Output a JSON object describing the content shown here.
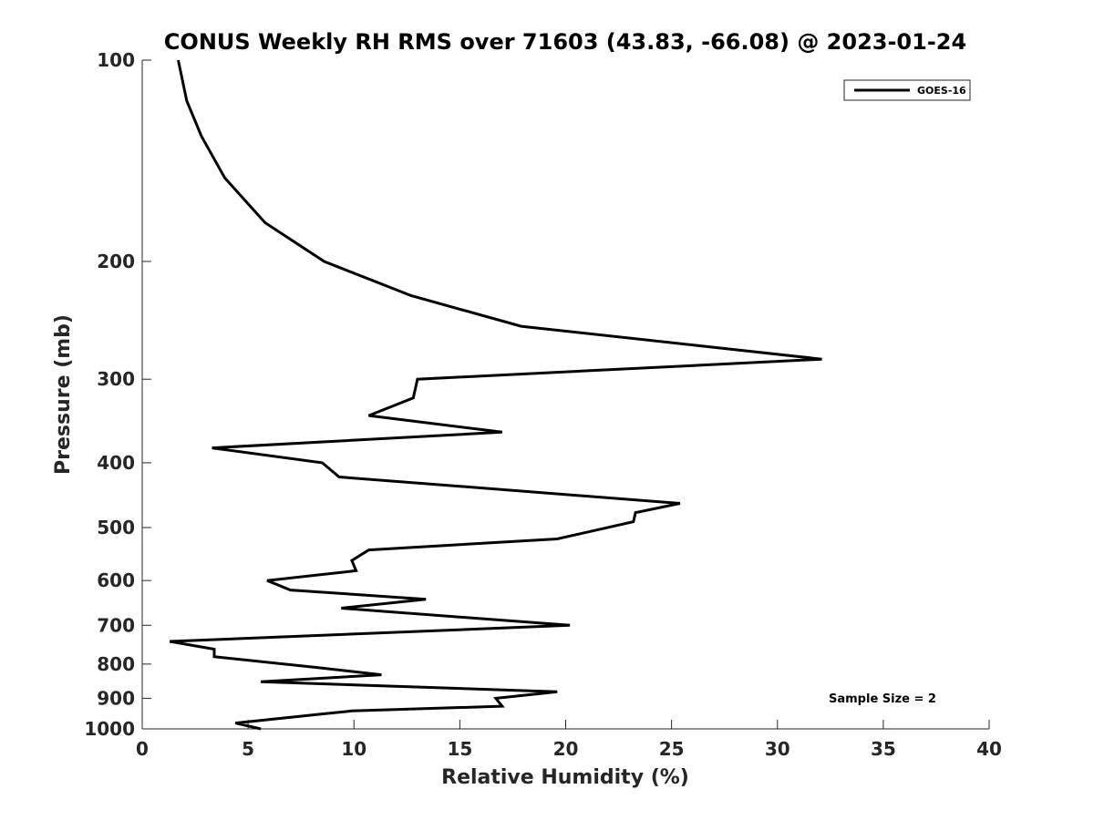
{
  "chart_data": {
    "type": "line",
    "title": "CONUS Weekly RH RMS over 71603 (43.83, -66.08) @ 2023-01-24",
    "xlabel": "Relative Humidity (%)",
    "ylabel": "Pressure (mb)",
    "xlim": [
      0,
      40
    ],
    "ylim": [
      100,
      1000
    ],
    "y_scale": "log",
    "y_reversed": true,
    "x_ticks": [
      "0",
      "5",
      "10",
      "15",
      "20",
      "25",
      "30",
      "35",
      "40"
    ],
    "x_tick_values": [
      0,
      5,
      10,
      15,
      20,
      25,
      30,
      35,
      40
    ],
    "y_ticks": [
      "100",
      "200",
      "300",
      "400",
      "500",
      "600",
      "700",
      "800",
      "900",
      "1000"
    ],
    "y_tick_values": [
      100,
      200,
      300,
      400,
      500,
      600,
      700,
      800,
      900,
      1000
    ],
    "grid": false,
    "legend_position": "top-right",
    "series": [
      {
        "name": "GOES-16",
        "color": "#000000",
        "x": [
          1.7,
          2.1,
          2.8,
          3.9,
          5.8,
          8.6,
          12.7,
          17.9,
          32.1,
          13.0,
          12.8,
          10.7,
          17.0,
          3.3,
          8.5,
          9.3,
          25.4,
          23.3,
          23.2,
          19.6,
          10.7,
          9.9,
          10.1,
          5.9,
          7.0,
          13.4,
          9.4,
          20.2,
          1.3,
          3.4,
          3.4,
          8.3,
          11.3,
          5.6,
          19.6,
          16.7,
          17.0,
          9.9,
          8.5,
          4.4,
          5.6
        ],
        "y": [
          100,
          115,
          130,
          150,
          175,
          200,
          225,
          250,
          280,
          300,
          320,
          340,
          360,
          380,
          400,
          420,
          460,
          475,
          490,
          520,
          540,
          560,
          580,
          600,
          620,
          640,
          660,
          700,
          740,
          760,
          780,
          810,
          830,
          850,
          880,
          900,
          925,
          940,
          950,
          980,
          1000
        ]
      }
    ],
    "annotations": [
      "Sample Size = 2"
    ]
  }
}
